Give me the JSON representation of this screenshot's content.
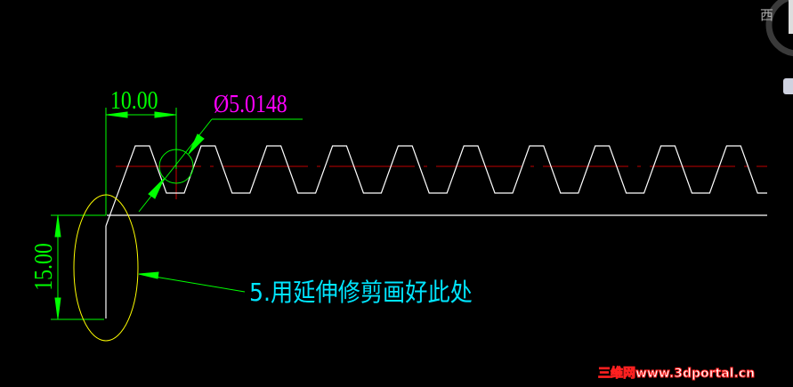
{
  "dimensions": {
    "pitch": "10.00",
    "diameter": "Ø5.0148",
    "height": "15.00"
  },
  "annotation": "5.用延伸修剪画好此处",
  "viewcube": {
    "direction_label": "西"
  },
  "watermark": "三维网www.3dportal.cn",
  "colors": {
    "background": "#000000",
    "geometry": "#ffffff",
    "dimension": "#00ff00",
    "diameter_text": "#ff00ff",
    "centerline": "#ff0000",
    "highlight_ellipse": "#ffff00",
    "note_text": "#00e5ff"
  }
}
